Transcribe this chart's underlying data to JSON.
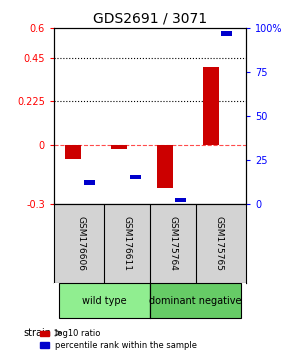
{
  "title": "GDS2691 / 3071",
  "samples": [
    "GSM176606",
    "GSM176611",
    "GSM175764",
    "GSM175765"
  ],
  "groups": [
    "wild type",
    "wild type",
    "dominant negative",
    "dominant negative"
  ],
  "group_labels": [
    "wild type",
    "dominant negative"
  ],
  "group_colors": [
    "#90ee90",
    "#66cc66"
  ],
  "log10_ratio": [
    -0.07,
    -0.02,
    -0.22,
    0.4
  ],
  "percentile_rank": [
    0.12,
    0.15,
    0.02,
    0.97
  ],
  "ylim_left": [
    -0.3,
    0.6
  ],
  "ylim_right": [
    0,
    100
  ],
  "yticks_left": [
    -0.3,
    0,
    0.225,
    0.45,
    0.6
  ],
  "yticks_right": [
    0,
    25,
    50,
    75,
    100
  ],
  "ytick_labels_left": [
    "-0.3",
    "0",
    "0.225",
    "0.45",
    "0.6"
  ],
  "ytick_labels_right": [
    "0",
    "25",
    "50",
    "75",
    "100%"
  ],
  "hlines_dotted": [
    0.225,
    0.45
  ],
  "hline_dashed": 0,
  "bar_color_red": "#cc0000",
  "bar_color_blue": "#0000cc",
  "bar_width": 0.35,
  "legend_red": "log10 ratio",
  "legend_blue": "percentile rank within the sample",
  "strain_label": "strain",
  "background_color": "#ffffff"
}
